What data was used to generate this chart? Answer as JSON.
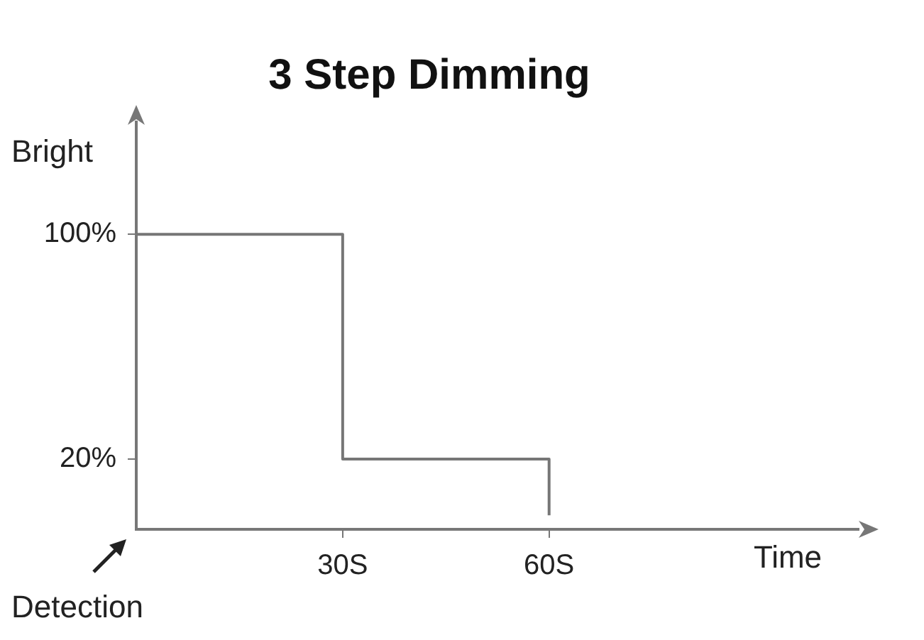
{
  "chart_data": {
    "type": "step",
    "title": "3 Step Dimming",
    "ylabel": "Bright",
    "xlabel": "Time",
    "annotations": [
      "Detection"
    ],
    "x": [
      0,
      30,
      60
    ],
    "series": [
      {
        "color": "#767676",
        "values": [
          100,
          20,
          0
        ]
      }
    ],
    "xlim": [
      0,
      105
    ],
    "xticks": [
      {
        "value": 30,
        "label": "30S"
      },
      {
        "value": 60,
        "label": "60S"
      }
    ],
    "ylim": [
      -5,
      140
    ],
    "yticks": [
      {
        "value": 100,
        "label": "100%"
      },
      {
        "value": 20,
        "label": "20%"
      }
    ],
    "grid": false,
    "legend": false
  }
}
